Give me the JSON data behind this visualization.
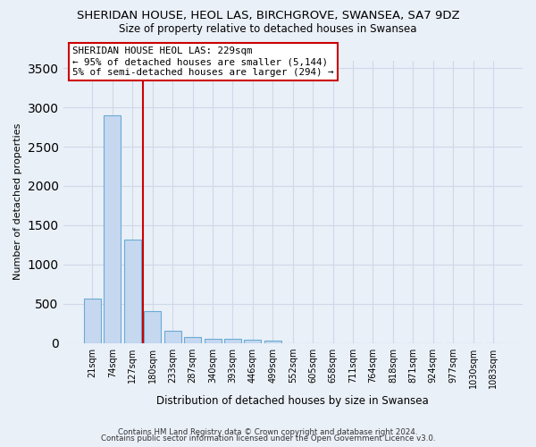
{
  "title": "SHERIDAN HOUSE, HEOL LAS, BIRCHGROVE, SWANSEA, SA7 9DZ",
  "subtitle": "Size of property relative to detached houses in Swansea",
  "xlabel": "Distribution of detached houses by size in Swansea",
  "ylabel": "Number of detached properties",
  "bar_labels": [
    "21sqm",
    "74sqm",
    "127sqm",
    "180sqm",
    "233sqm",
    "287sqm",
    "340sqm",
    "393sqm",
    "446sqm",
    "499sqm",
    "552sqm",
    "605sqm",
    "658sqm",
    "711sqm",
    "764sqm",
    "818sqm",
    "871sqm",
    "924sqm",
    "977sqm",
    "1030sqm",
    "1083sqm"
  ],
  "bar_values": [
    570,
    2900,
    1320,
    405,
    150,
    80,
    55,
    50,
    40,
    30,
    0,
    0,
    0,
    0,
    0,
    0,
    0,
    0,
    0,
    0,
    0
  ],
  "bar_color": "#c5d8f0",
  "bar_edge_color": "#6aaad4",
  "vline_color": "#cc0000",
  "vline_x_index": 2.5,
  "annotation_line1": "SHERIDAN HOUSE HEOL LAS: 229sqm",
  "annotation_line2": "← 95% of detached houses are smaller (5,144)",
  "annotation_line3": "5% of semi-detached houses are larger (294) →",
  "annotation_box_edge": "#cc0000",
  "ylim": [
    0,
    3600
  ],
  "yticks": [
    0,
    500,
    1000,
    1500,
    2000,
    2500,
    3000,
    3500
  ],
  "grid_color": "#d0d8e8",
  "background_color": "#eaf0f8",
  "footer_line1": "Contains HM Land Registry data © Crown copyright and database right 2024.",
  "footer_line2": "Contains public sector information licensed under the Open Government Licence v3.0."
}
